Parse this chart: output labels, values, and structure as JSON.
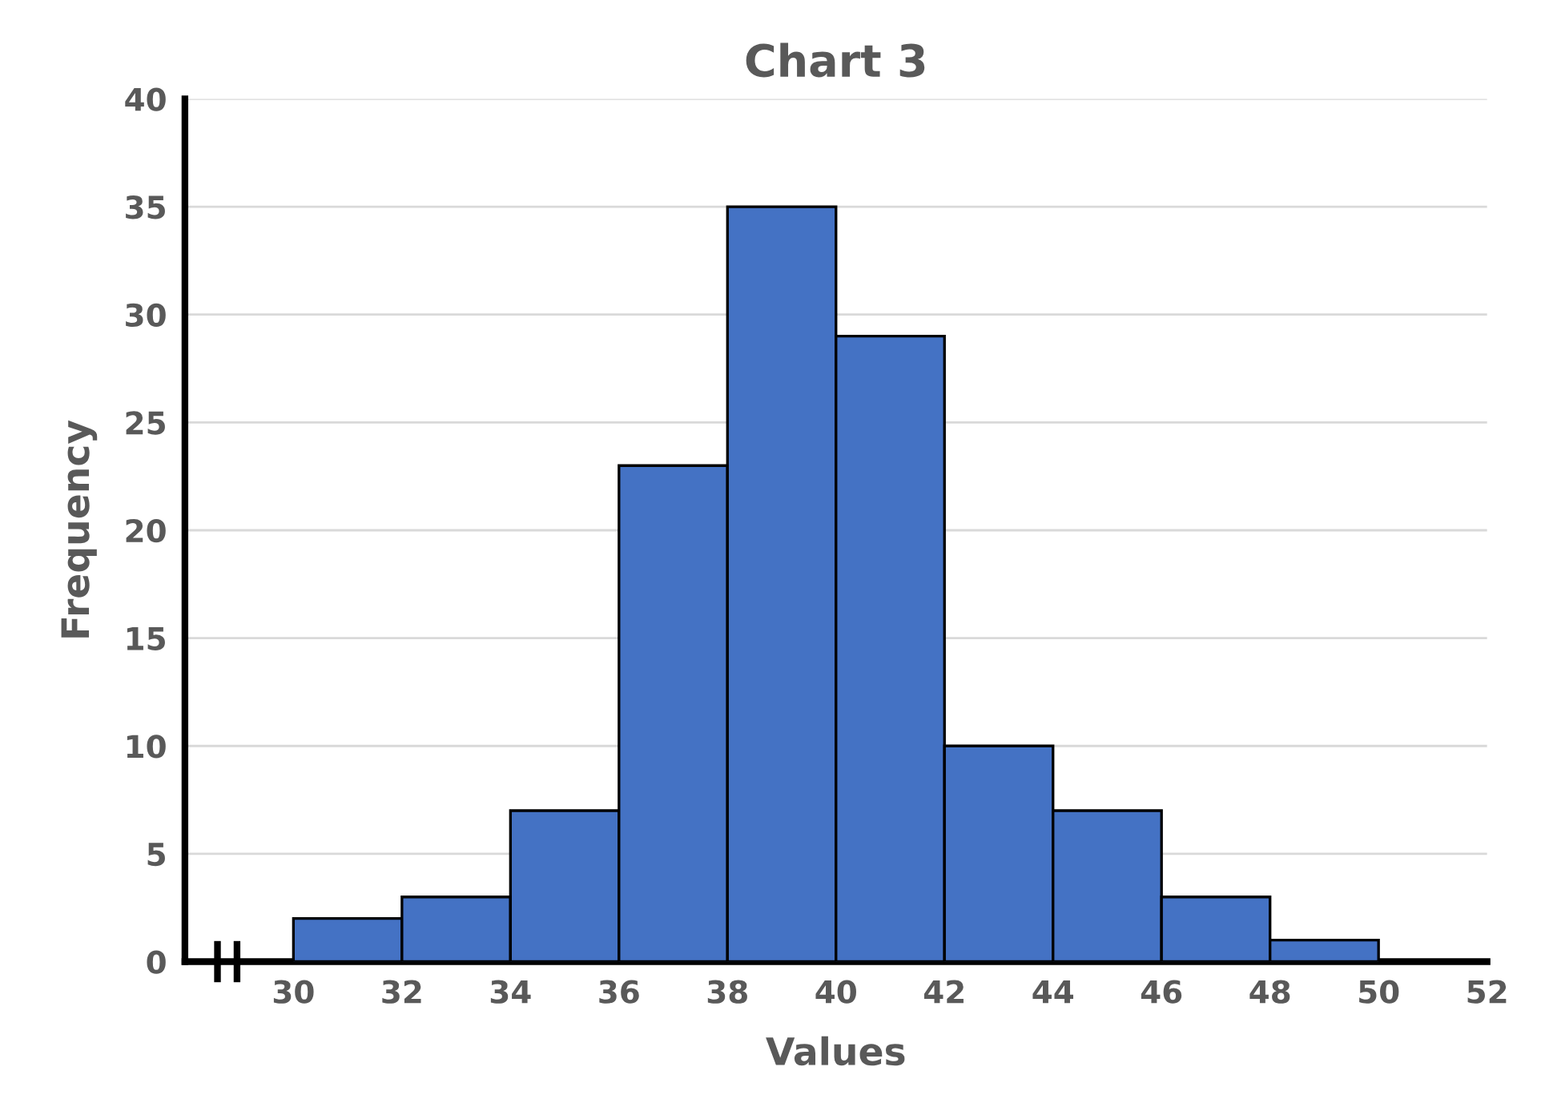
{
  "chart_data": {
    "type": "histogram",
    "title": "Chart 3",
    "xlabel": "Values",
    "ylabel": "Frequency",
    "bins": [
      30,
      32,
      34,
      36,
      38,
      40,
      42,
      44,
      46,
      48,
      50
    ],
    "values": [
      2,
      3,
      7,
      23,
      35,
      29,
      10,
      7,
      3,
      1
    ],
    "color": "#4472c4",
    "xlim": [
      28,
      52
    ],
    "xticks": [
      30,
      32,
      34,
      36,
      38,
      40,
      42,
      44,
      46,
      48,
      50,
      52
    ],
    "ylim": [
      0,
      40
    ],
    "yticks": [
      0,
      5,
      10,
      15,
      20,
      25,
      30,
      35,
      40
    ],
    "grid": "y"
  }
}
